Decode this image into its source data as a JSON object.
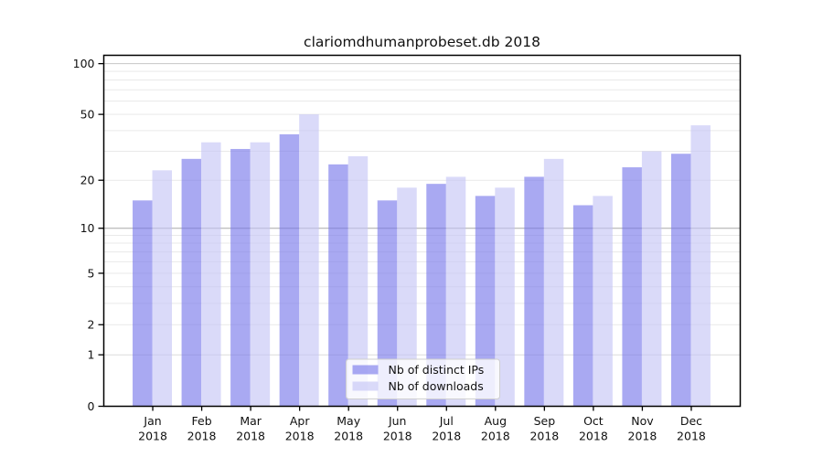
{
  "chart_data": {
    "type": "bar",
    "title": "clariomdhumanprobeset.db 2018",
    "categories": [
      "Jan",
      "Feb",
      "Mar",
      "Apr",
      "May",
      "Jun",
      "Jul",
      "Aug",
      "Sep",
      "Oct",
      "Nov",
      "Dec"
    ],
    "category_year": "2018",
    "series": [
      {
        "name": "Nb of distinct IPs",
        "color": "#7474ea",
        "values": [
          15,
          27,
          31,
          38,
          25,
          15,
          19,
          16,
          21,
          14,
          24,
          29
        ]
      },
      {
        "name": "Nb of downloads",
        "color": "#c4c4f6",
        "values": [
          23,
          34,
          34,
          50,
          28,
          18,
          21,
          18,
          27,
          16,
          30,
          43
        ]
      }
    ],
    "y_scale": "log1p",
    "ylim": [
      0,
      112
    ],
    "y_ticks": [
      100,
      50,
      20,
      10,
      5,
      2,
      1,
      0
    ],
    "xlabel": "",
    "ylabel": "",
    "grid": "horizontal log minor+major",
    "legend_position": "lower center",
    "colors": {
      "bar_opacity": "0.62",
      "decade_gridline": "#a8a8a8",
      "top_gridline": "#c6c6c6",
      "minor_gridline": "#e9e9e9",
      "axis": "#000000",
      "legend_border": "#cfcfcf"
    }
  }
}
